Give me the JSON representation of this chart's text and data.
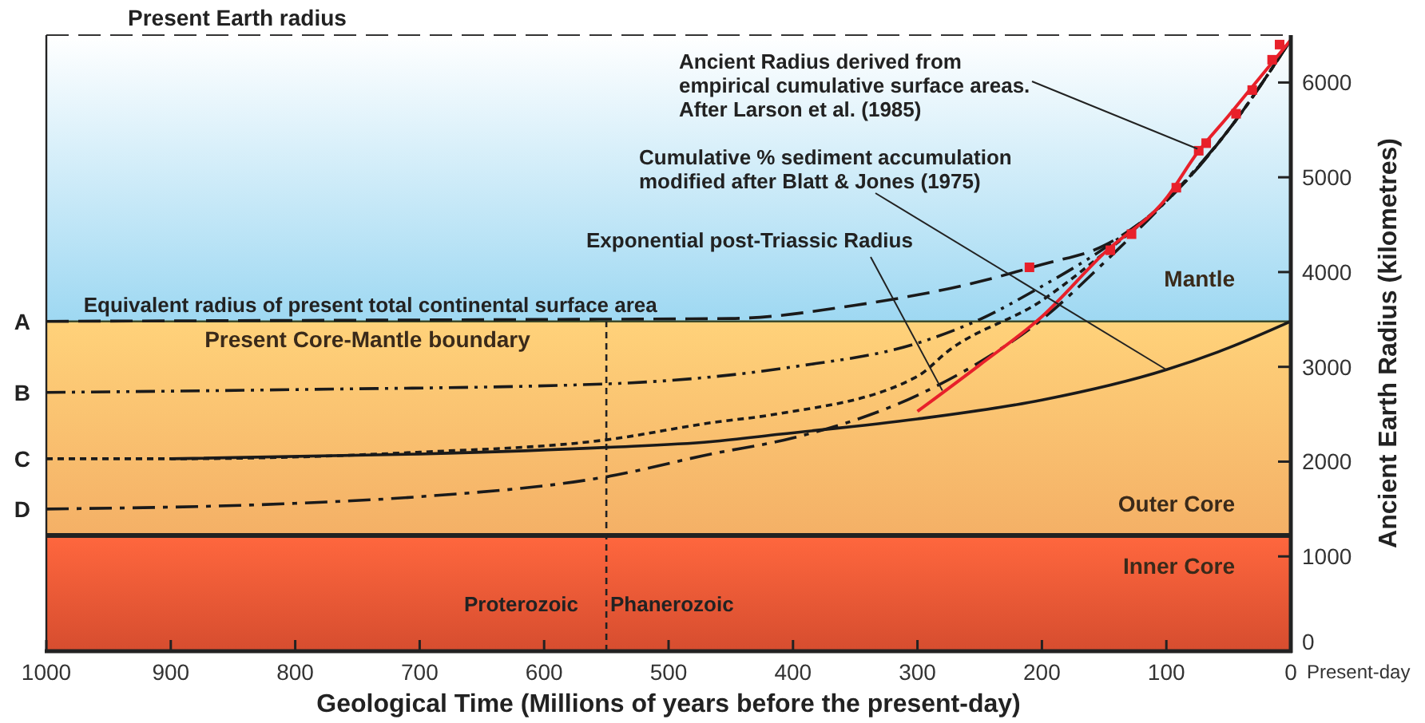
{
  "chart_data": {
    "type": "line",
    "xlabel": "Geological Time (Millions of years before the present-day)",
    "ylabel": "Ancient Earth Radius (kilometres)",
    "xlim": [
      1000,
      0
    ],
    "xticks": [
      1000,
      900,
      800,
      700,
      600,
      500,
      400,
      300,
      200,
      100,
      0
    ],
    "ylim": [
      0,
      6500
    ],
    "yticks": [
      0,
      1000,
      2000,
      3000,
      4000,
      5000,
      6000
    ],
    "series": [
      {
        "color": "#1a1a1a",
        "line_style": "dashed",
        "x": [
          1000,
          800,
          600,
          450,
          350,
          250,
          200,
          150,
          100,
          50,
          0
        ],
        "values": [
          3480,
          3490,
          3500,
          3510,
          3650,
          3900,
          4080,
          4280,
          4750,
          5500,
          6450
        ]
      },
      {
        "color": "#1a1a1a",
        "line_style": "dashdotdot",
        "x": [
          1000,
          800,
          550,
          400,
          300,
          250,
          200,
          150,
          100,
          50,
          0
        ],
        "values": [
          2730,
          2760,
          2820,
          3000,
          3250,
          3500,
          3850,
          4250,
          4750,
          5500,
          6450
        ]
      },
      {
        "color": "#1a1a1a",
        "line_style": "dotted",
        "x": [
          1000,
          900,
          700,
          550,
          466,
          414,
          300,
          275,
          200,
          150,
          100,
          50,
          0
        ],
        "values": [
          2030,
          2030,
          2100,
          2230,
          2410,
          2500,
          2900,
          3170,
          3700,
          4200,
          4750,
          5500,
          6450
        ]
      },
      {
        "color": "#1a1a1a",
        "line_style": "solid",
        "x": [
          900,
          700,
          550,
          466,
          410,
          300,
          200,
          100,
          50,
          0
        ],
        "values": [
          2030,
          2080,
          2150,
          2210,
          2290,
          2450,
          2650,
          2970,
          3200,
          3480
        ]
      },
      {
        "color": "#1a1a1a",
        "line_style": "dashdot",
        "x": [
          1000,
          800,
          700,
          550,
          466,
          400,
          300,
          250,
          200,
          150,
          100,
          50,
          0
        ],
        "values": [
          1500,
          1560,
          1630,
          1840,
          2080,
          2250,
          2700,
          3050,
          3500,
          4100,
          4750,
          5500,
          6450
        ]
      },
      {
        "color": "#e8202a",
        "line_style": "solid",
        "x": [
          300,
          250,
          200,
          150,
          100,
          75,
          50,
          25,
          0
        ],
        "values": [
          2530,
          3020,
          3530,
          4200,
          4780,
          5260,
          5650,
          6050,
          6450
        ]
      },
      {
        "type": "scatter",
        "marker": "square",
        "color": "#e8202a",
        "x": [
          210,
          145,
          128,
          92,
          74,
          68,
          44,
          31,
          15,
          9
        ],
        "values": [
          4050,
          4230,
          4400,
          4890,
          5280,
          5360,
          5670,
          5920,
          6240,
          6400
        ]
      }
    ],
    "bands": [
      {
        "axis": "y",
        "from": 0,
        "to": 1220,
        "label": "Inner Core",
        "color": "#ee5634"
      },
      {
        "axis": "y",
        "from": 1220,
        "to": 3480,
        "label": "Outer Core",
        "color": "#f4b066"
      },
      {
        "axis": "y",
        "from": 3480,
        "to": 6500,
        "label": "Mantle",
        "color": "#9ed8f2"
      }
    ],
    "ref_lines": [
      {
        "axis": "y",
        "value": 6500,
        "label": "Present Earth radius",
        "color": "#333333",
        "line_style": "dashed"
      },
      {
        "axis": "y",
        "value": 3480,
        "label": "Present Core-Mantle boundary",
        "color": "#3d4a2a",
        "line_style": "solid"
      },
      {
        "axis": "y",
        "value": 1220,
        "label": null,
        "color": "#222222",
        "line_style": "solid"
      },
      {
        "axis": "x",
        "value": 550,
        "label": null,
        "color": "#222222",
        "line_style": "dotted"
      }
    ],
    "annotations": [
      {
        "text": "Ancient Radius derived from\nempirical cumulative surface areas.\nAfter Larson et al. (1985)",
        "x": 75,
        "y": 5300
      },
      {
        "text": "Cumulative % sediment accumulation\nmodified after Blatt & Jones (1975)",
        "x": 100,
        "y": 2970
      },
      {
        "text": "Exponential post-Triassic Radius",
        "x": 280,
        "y": 2750
      },
      {
        "text": "Equivalent radius of present total continental surface area",
        "x": 970,
        "y": 3480
      },
      {
        "text": "A",
        "x": 1000,
        "y": 3480
      },
      {
        "text": "B",
        "x": 1000,
        "y": 2730
      },
      {
        "text": "C",
        "x": 1000,
        "y": 2030
      },
      {
        "text": "D",
        "x": 1000,
        "y": 1500
      },
      "Proterozoic",
      "Phanerozoic",
      "Present-day"
    ]
  }
}
